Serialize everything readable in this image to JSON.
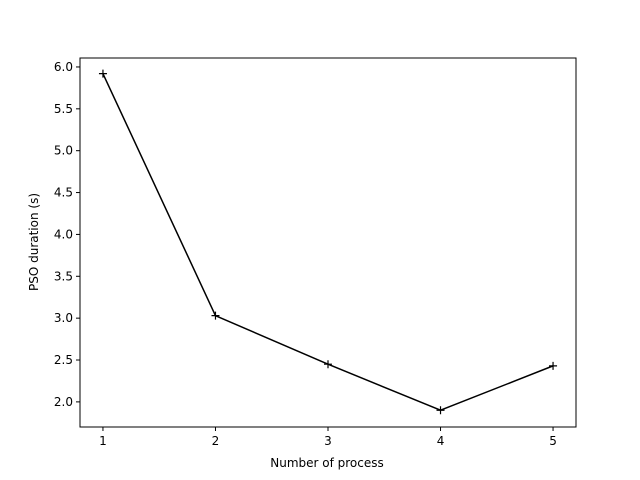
{
  "chart_data": {
    "type": "line",
    "x_label": "Number of process",
    "y_label": "PSO duration (s)",
    "x": [
      1,
      2,
      3,
      4,
      5
    ],
    "values": [
      5.92,
      3.03,
      2.45,
      1.9,
      2.43
    ],
    "color": "#000000",
    "marker": "+",
    "xlim": [
      0.796,
      5.204
    ],
    "ylim": [
      1.7,
      6.107
    ],
    "xticks": [
      1,
      2,
      3,
      4,
      5
    ],
    "yticks": [
      {
        "value": 2.0,
        "label": "2.0"
      },
      2.5,
      {
        "value": 3.0,
        "label": "3.0"
      },
      3.5,
      {
        "value": 4.0,
        "label": "4.0"
      },
      4.5,
      {
        "value": 5.0,
        "label": "5.0"
      },
      5.5,
      {
        "value": 6.0,
        "label": "6.0"
      }
    ]
  }
}
